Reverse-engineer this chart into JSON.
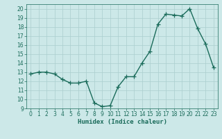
{
  "x": [
    0,
    1,
    2,
    3,
    4,
    5,
    6,
    7,
    8,
    9,
    10,
    11,
    12,
    13,
    14,
    15,
    16,
    17,
    18,
    19,
    20,
    21,
    22,
    23
  ],
  "y": [
    12.8,
    13.0,
    13.0,
    12.8,
    12.2,
    11.8,
    11.8,
    12.0,
    9.6,
    9.2,
    9.3,
    11.4,
    12.5,
    12.5,
    14.0,
    15.3,
    18.3,
    19.4,
    19.3,
    19.2,
    20.0,
    17.8,
    16.1,
    13.5
  ],
  "line_color": "#1a6b5a",
  "bg_color": "#cce8e8",
  "grid_color": "#aacece",
  "xlabel": "Humidex (Indice chaleur)",
  "xlim": [
    -0.5,
    23.5
  ],
  "ylim": [
    9,
    20.5
  ],
  "yticks": [
    9,
    10,
    11,
    12,
    13,
    14,
    15,
    16,
    17,
    18,
    19,
    20
  ],
  "xticks": [
    0,
    1,
    2,
    3,
    4,
    5,
    6,
    7,
    8,
    9,
    10,
    11,
    12,
    13,
    14,
    15,
    16,
    17,
    18,
    19,
    20,
    21,
    22,
    23
  ],
  "markersize": 4,
  "linewidth": 1.0,
  "tick_fontsize": 5.5,
  "label_fontsize": 6.5
}
